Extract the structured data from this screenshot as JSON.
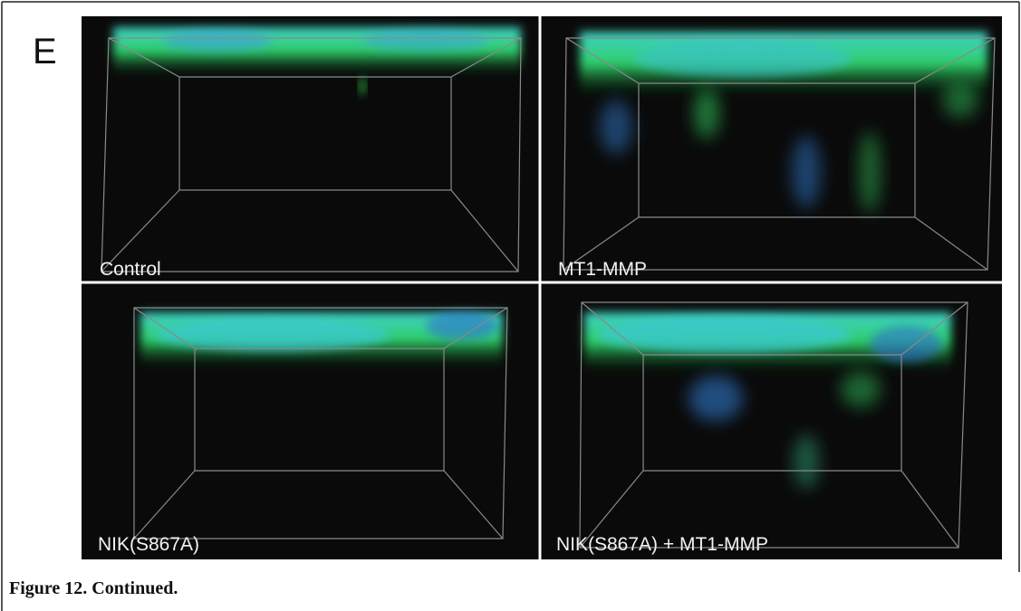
{
  "panel_letter": "E",
  "panels": [
    {
      "label": "Control"
    },
    {
      "label": "MT1-MMP"
    },
    {
      "label": "NIK(S867A)"
    },
    {
      "label": "NIK(S867A) + MT1-MMP"
    }
  ],
  "caption": "Figure 12. Continued."
}
